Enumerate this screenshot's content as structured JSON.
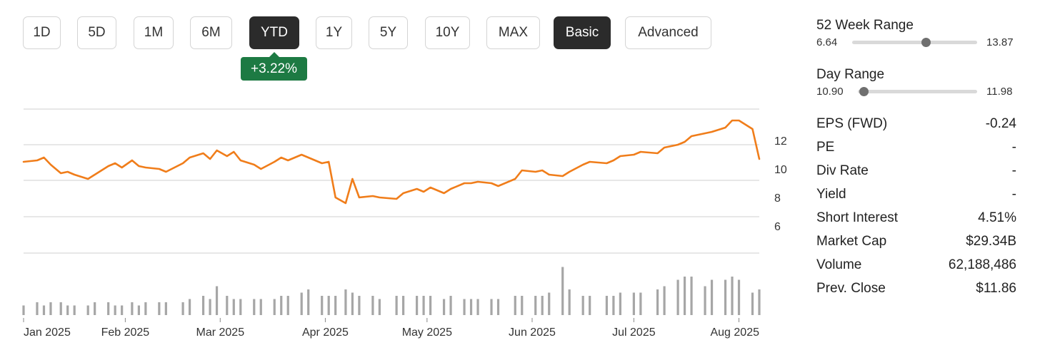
{
  "toolbar": {
    "ranges": [
      "1D",
      "5D",
      "1M",
      "6M",
      "YTD",
      "1Y",
      "5Y",
      "10Y",
      "MAX"
    ],
    "active_range": "YTD",
    "modes": [
      "Basic",
      "Advanced"
    ],
    "active_mode": "Basic"
  },
  "change_badge": "+3.22%",
  "colors": {
    "line": "#f07d1a",
    "volume": "#a6a6a6",
    "grid": "#cfcfcf",
    "badge": "#1d7a43",
    "active_button": "#2b2b2b"
  },
  "chart_data": {
    "type": "line",
    "title": "",
    "xlabel": "",
    "ylabel": "",
    "ylim": [
      4.1,
      14.2
    ],
    "yticks": [
      6,
      8,
      10,
      12
    ],
    "grid": true,
    "x_tick_labels": [
      "Jan 2025",
      "Feb 2025",
      "Mar 2025",
      "Apr 2025",
      "May 2025",
      "Jun 2025",
      "Jul 2025",
      "Aug 2025"
    ],
    "x": [
      "2025-01-02",
      "2025-01-06",
      "2025-01-08",
      "2025-01-10",
      "2025-01-13",
      "2025-01-15",
      "2025-01-17",
      "2025-01-21",
      "2025-01-23",
      "2025-01-27",
      "2025-01-29",
      "2025-01-31",
      "2025-02-03",
      "2025-02-05",
      "2025-02-07",
      "2025-02-11",
      "2025-02-13",
      "2025-02-18",
      "2025-02-20",
      "2025-02-24",
      "2025-02-26",
      "2025-02-28",
      "2025-03-03",
      "2025-03-05",
      "2025-03-07",
      "2025-03-11",
      "2025-03-13",
      "2025-03-17",
      "2025-03-19",
      "2025-03-21",
      "2025-03-25",
      "2025-03-27",
      "2025-03-31",
      "2025-04-02",
      "2025-04-04",
      "2025-04-07",
      "2025-04-09",
      "2025-04-11",
      "2025-04-15",
      "2025-04-17",
      "2025-04-22",
      "2025-04-24",
      "2025-04-28",
      "2025-04-30",
      "2025-05-02",
      "2025-05-06",
      "2025-05-08",
      "2025-05-12",
      "2025-05-14",
      "2025-05-16",
      "2025-05-20",
      "2025-05-22",
      "2025-05-27",
      "2025-05-29",
      "2025-06-02",
      "2025-06-04",
      "2025-06-06",
      "2025-06-10",
      "2025-06-12",
      "2025-06-16",
      "2025-06-18",
      "2025-06-23",
      "2025-06-25",
      "2025-06-27",
      "2025-07-01",
      "2025-07-03",
      "2025-07-08",
      "2025-07-10",
      "2025-07-14",
      "2025-07-16",
      "2025-07-18",
      "2025-07-22",
      "2025-07-24",
      "2025-07-28",
      "2025-07-30",
      "2025-08-01",
      "2025-08-05",
      "2025-08-07"
    ],
    "series": [
      {
        "values": [
          10.5,
          10.6,
          10.8,
          10.3,
          9.7,
          9.8,
          9.6,
          9.3,
          9.6,
          10.2,
          10.4,
          10.1,
          10.6,
          10.2,
          10.1,
          10.0,
          9.8,
          10.4,
          10.8,
          11.1,
          10.7,
          11.3,
          10.9,
          11.2,
          10.6,
          10.3,
          10.0,
          10.5,
          10.8,
          10.6,
          11.0,
          10.8,
          10.4,
          10.5,
          8.0,
          7.6,
          9.3,
          8.0,
          8.1,
          8.0,
          7.9,
          8.3,
          8.6,
          8.4,
          8.7,
          8.3,
          8.6,
          9.0,
          9.0,
          9.1,
          9.0,
          8.8,
          9.3,
          9.9,
          9.8,
          9.9,
          9.6,
          9.5,
          9.8,
          10.3,
          10.5,
          10.4,
          10.6,
          10.9,
          11.0,
          11.2,
          11.1,
          11.5,
          11.7,
          11.9,
          12.3,
          12.5,
          12.6,
          12.9,
          13.4,
          13.4,
          12.8,
          10.7
        ]
      }
    ],
    "volume": [
      3,
      4,
      3,
      4,
      4,
      3,
      3,
      3,
      4,
      4,
      3,
      3,
      4,
      3,
      4,
      4,
      4,
      4,
      5,
      6,
      5,
      9,
      6,
      5,
      5,
      5,
      5,
      5,
      6,
      6,
      7,
      8,
      6,
      6,
      6,
      8,
      7,
      6,
      6,
      5,
      6,
      6,
      6,
      6,
      6,
      5,
      6,
      5,
      5,
      5,
      5,
      5,
      6,
      6,
      6,
      6,
      7,
      15,
      8,
      6,
      6,
      6,
      6,
      7,
      7,
      7,
      8,
      9,
      11,
      12,
      12,
      9,
      11,
      11,
      12,
      11,
      7,
      8
    ]
  },
  "stats": {
    "week52": {
      "title": "52 Week Range",
      "low": "6.64",
      "high": "13.87",
      "position": 0.59
    },
    "day": {
      "title": "Day Range",
      "low": "10.90",
      "high": "11.98",
      "position": 0.05
    },
    "rows": [
      {
        "label": "EPS (FWD)",
        "value": "-0.24"
      },
      {
        "label": "PE",
        "value": "-"
      },
      {
        "label": "Div Rate",
        "value": "-"
      },
      {
        "label": "Yield",
        "value": "-"
      },
      {
        "label": "Short Interest",
        "value": "4.51%"
      },
      {
        "label": "Market Cap",
        "value": "$29.34B"
      },
      {
        "label": "Volume",
        "value": "62,188,486"
      },
      {
        "label": "Prev. Close",
        "value": "$11.86"
      }
    ]
  }
}
